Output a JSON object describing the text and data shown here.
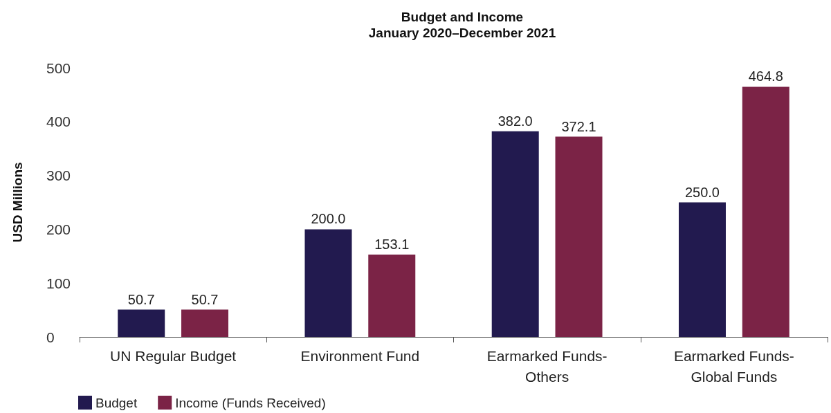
{
  "chart_data": {
    "type": "bar",
    "title": "Budget and Income",
    "subtitle": "January 2020–December 2021",
    "ylabel": "USD Millions",
    "categories": [
      "UN Regular Budget",
      "Environment Fund",
      "Earmarked Funds-Others",
      "Earmarked Funds-Global Funds"
    ],
    "series": [
      {
        "name": "Budget",
        "color": "#221a4f",
        "values": [
          50.7,
          200,
          382,
          250
        ],
        "value_labels": [
          "50.7",
          "200.0",
          "382.0",
          "250.0"
        ]
      },
      {
        "name": "Income (Funds Received)",
        "color": "#7b2346",
        "values": [
          50.7,
          153.1,
          372.1,
          464.8
        ],
        "value_labels": [
          "50.7",
          "153.1",
          "372.1",
          "464.8"
        ]
      }
    ],
    "ylim": [
      0,
      500
    ],
    "yticks": [
      0,
      100,
      200,
      300,
      400,
      500
    ],
    "grid": false,
    "legend": "bottom left"
  }
}
